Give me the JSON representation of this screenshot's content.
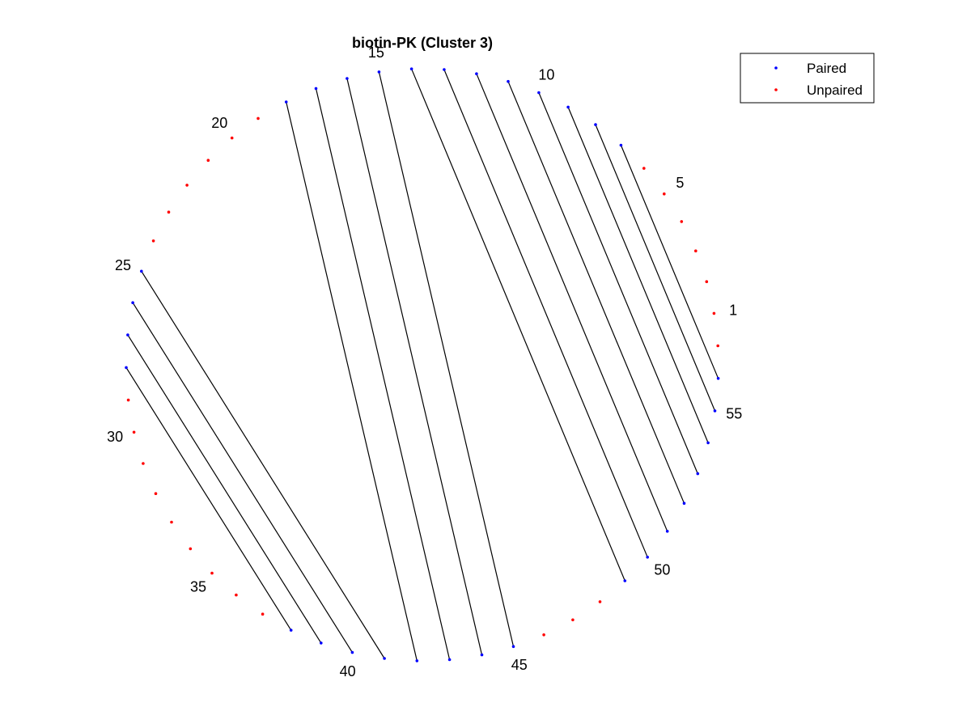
{
  "chart_data": {
    "type": "arc-diagram-circular",
    "title": "biotin-PK (Cluster 3)",
    "n": 57,
    "index_labels": [
      1,
      5,
      10,
      15,
      20,
      25,
      30,
      35,
      40,
      45,
      50,
      55
    ],
    "pairs": [
      [
        7,
        56
      ],
      [
        8,
        55
      ],
      [
        9,
        54
      ],
      [
        10,
        53
      ],
      [
        11,
        52
      ],
      [
        12,
        51
      ],
      [
        13,
        50
      ],
      [
        14,
        49
      ],
      [
        15,
        45
      ],
      [
        16,
        44
      ],
      [
        17,
        43
      ],
      [
        18,
        42
      ],
      [
        25,
        41
      ],
      [
        26,
        40
      ],
      [
        27,
        39
      ],
      [
        28,
        38
      ]
    ],
    "legend": {
      "position": "top-right",
      "entries": [
        {
          "label": "Paired",
          "color": "#0000ff"
        },
        {
          "label": "Unpaired",
          "color": "#ff0000"
        }
      ]
    },
    "colors": {
      "paired": "#0000ff",
      "unpaired": "#ff0000",
      "line": "#000000"
    },
    "grid": false
  }
}
